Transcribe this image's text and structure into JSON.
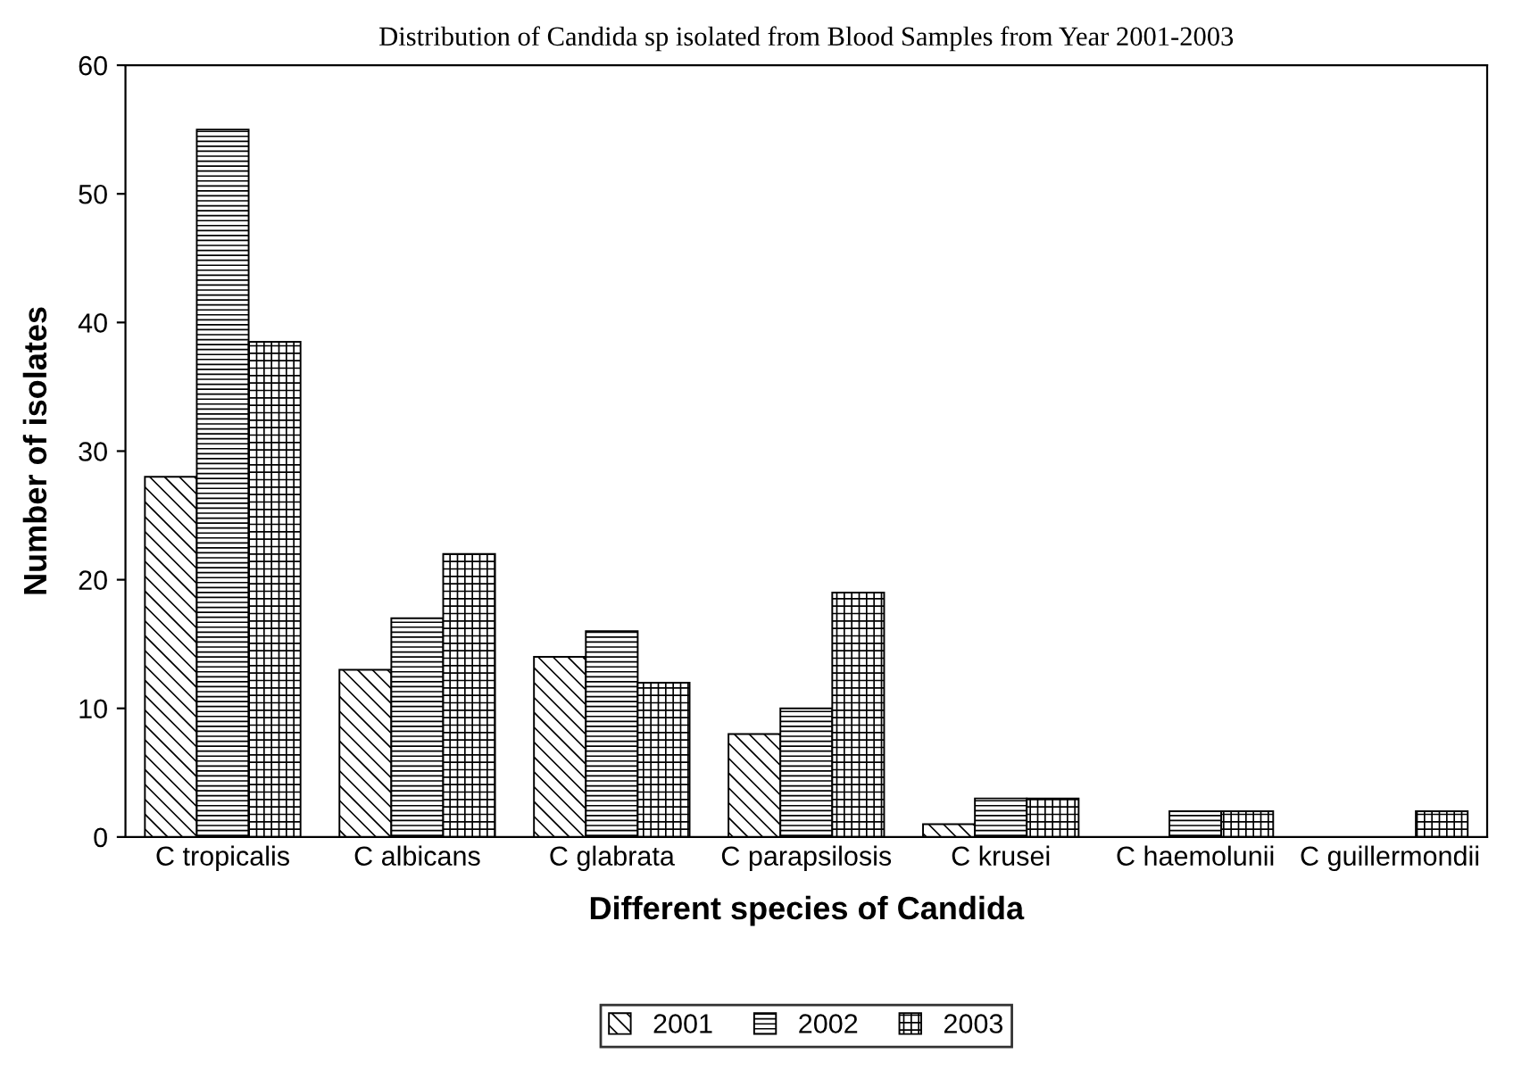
{
  "chart_data": {
    "type": "bar",
    "title": "Distribution of Candida sp isolated from Blood Samples from Year 2001-2003",
    "xlabel": "Different species of Candida",
    "ylabel": "Number of isolates",
    "categories": [
      "C tropicalis",
      "C albicans",
      "C glabrata",
      "C parapsilosis",
      "C krusei",
      "C haemolunii",
      "C guillermondii"
    ],
    "series": [
      {
        "name": "2001",
        "color": "#000000",
        "values": [
          28,
          13,
          14,
          8,
          1,
          0,
          0
        ]
      },
      {
        "name": "2002",
        "color": "#000000",
        "values": [
          55,
          17,
          16,
          10,
          3,
          2,
          0
        ]
      },
      {
        "name": "2003",
        "color": "#000000",
        "values": [
          38.5,
          22,
          12,
          19,
          3,
          2,
          2
        ]
      }
    ],
    "ylim": [
      0,
      60
    ],
    "yticks": [
      0,
      10,
      20,
      30,
      40,
      50,
      60
    ],
    "grid": false,
    "legend": "bottom"
  }
}
